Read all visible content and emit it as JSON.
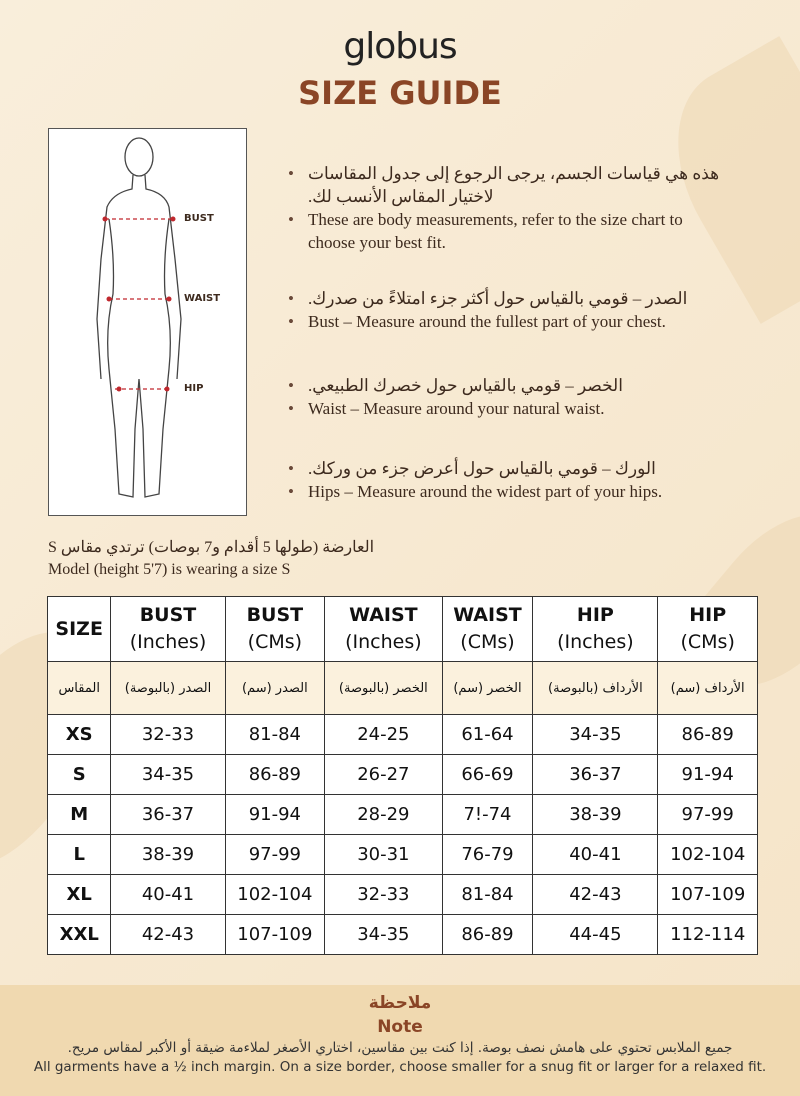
{
  "brand": "globus",
  "title": "SIZE GUIDE",
  "figure_labels": {
    "bust": "BUST",
    "waist": "WAIST",
    "hip": "HIP"
  },
  "bullets": [
    {
      "ar": "هذه هي قياسات الجسم، يرجى الرجوع إلى جدول المقاسات لاختيار المقاس الأنسب لك.",
      "en": "These are body measurements, refer to the size chart to choose your best fit."
    },
    {
      "ar": "الصدر – قومي بالقياس حول أكثر جزء امتلاءً من صدرك.",
      "en": "Bust – Measure around the fullest part of your chest."
    },
    {
      "ar": "الخصر – قومي بالقياس حول خصرك الطبيعي.",
      "en": "Waist – Measure around your natural waist."
    },
    {
      "ar": "الورك – قومي بالقياس حول أعرض جزء من وركك.",
      "en": "Hips – Measure around the widest part of your hips."
    }
  ],
  "model": {
    "ar": "العارضة (طولها 5 أقدام و7 بوصات) ترتدي مقاس S",
    "en": "Model (height 5'7) is wearing a size S"
  },
  "table": {
    "headers": [
      [
        "SIZE",
        ""
      ],
      [
        "BUST",
        "(Inches)"
      ],
      [
        "BUST",
        "(CMs)"
      ],
      [
        "WAIST",
        "(Inches)"
      ],
      [
        "WAIST",
        "(CMs)"
      ],
      [
        "HIP",
        "(Inches)"
      ],
      [
        "HIP",
        "(CMs)"
      ]
    ],
    "headers_ar": [
      "المقاس",
      "الصدر (بالبوصة)",
      "الصدر (سم)",
      "الخصر (بالبوصة)",
      "الخصر (سم)",
      "الأرداف (بالبوصة)",
      "الأرداف (سم)"
    ],
    "rows": [
      [
        "XS",
        "32-33",
        "81-84",
        "24-25",
        "61-64",
        "34-35",
        "86-89"
      ],
      [
        "S",
        "34-35",
        "86-89",
        "26-27",
        "66-69",
        "36-37",
        "91-94"
      ],
      [
        "M",
        "36-37",
        "91-94",
        "28-29",
        "7!-74",
        "38-39",
        "97-99"
      ],
      [
        "L",
        "38-39",
        "97-99",
        "30-31",
        "76-79",
        "40-41",
        "102-104"
      ],
      [
        "XL",
        "40-41",
        "102-104",
        "32-33",
        "81-84",
        "42-43",
        "107-109"
      ],
      [
        "XXL",
        "42-43",
        "107-109",
        "34-35",
        "86-89",
        "44-45",
        "112-114"
      ]
    ]
  },
  "note": {
    "title_ar": "ملاحظة",
    "title_en": "Note",
    "text_ar": "جميع الملابس تحتوي على هامش نصف بوصة. إذا كنت بين مقاسين، اختاري الأصغر لملاءمة ضيقة أو الأكبر لمقاس مريح.",
    "text_en": "All garments have a ½ inch margin. On a size border, choose smaller for a snug fit or larger for a relaxed fit."
  },
  "colors": {
    "accent": "#8a4526",
    "background": "#f7e9d2",
    "note_band": "#f0d9b0",
    "marker": "#c0282e"
  }
}
